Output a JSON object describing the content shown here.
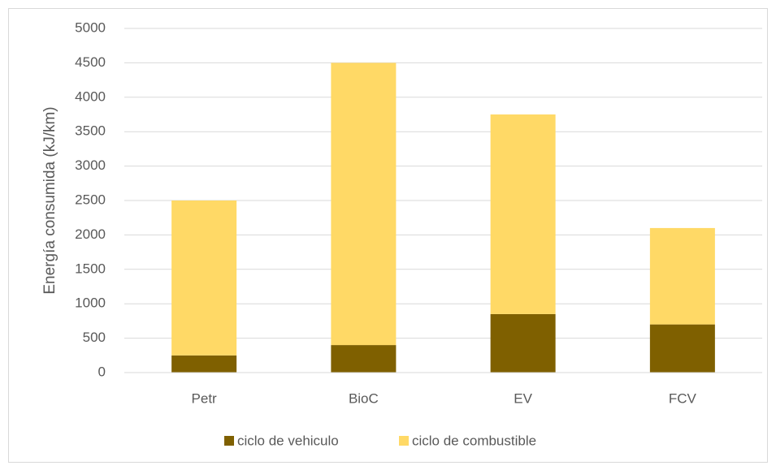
{
  "chart_data": {
    "type": "stacked_bar",
    "y_label": "Energía consumida (kJ/km)",
    "categories": [
      "Petr",
      "BioC",
      "EV",
      "FCV"
    ],
    "series": [
      {
        "name": "ciclo de vehiculo",
        "color": "#7f6000",
        "values": [
          250,
          400,
          850,
          700
        ]
      },
      {
        "name": "ciclo de combustible",
        "color": "#ffd966",
        "values": [
          2250,
          4100,
          2900,
          1400
        ]
      }
    ],
    "ylim": [
      0,
      5000
    ],
    "yticks": [
      0,
      500,
      1000,
      1500,
      2000,
      2500,
      3000,
      3500,
      4000,
      4500,
      5000
    ],
    "grid": true,
    "legend": "bottom"
  }
}
